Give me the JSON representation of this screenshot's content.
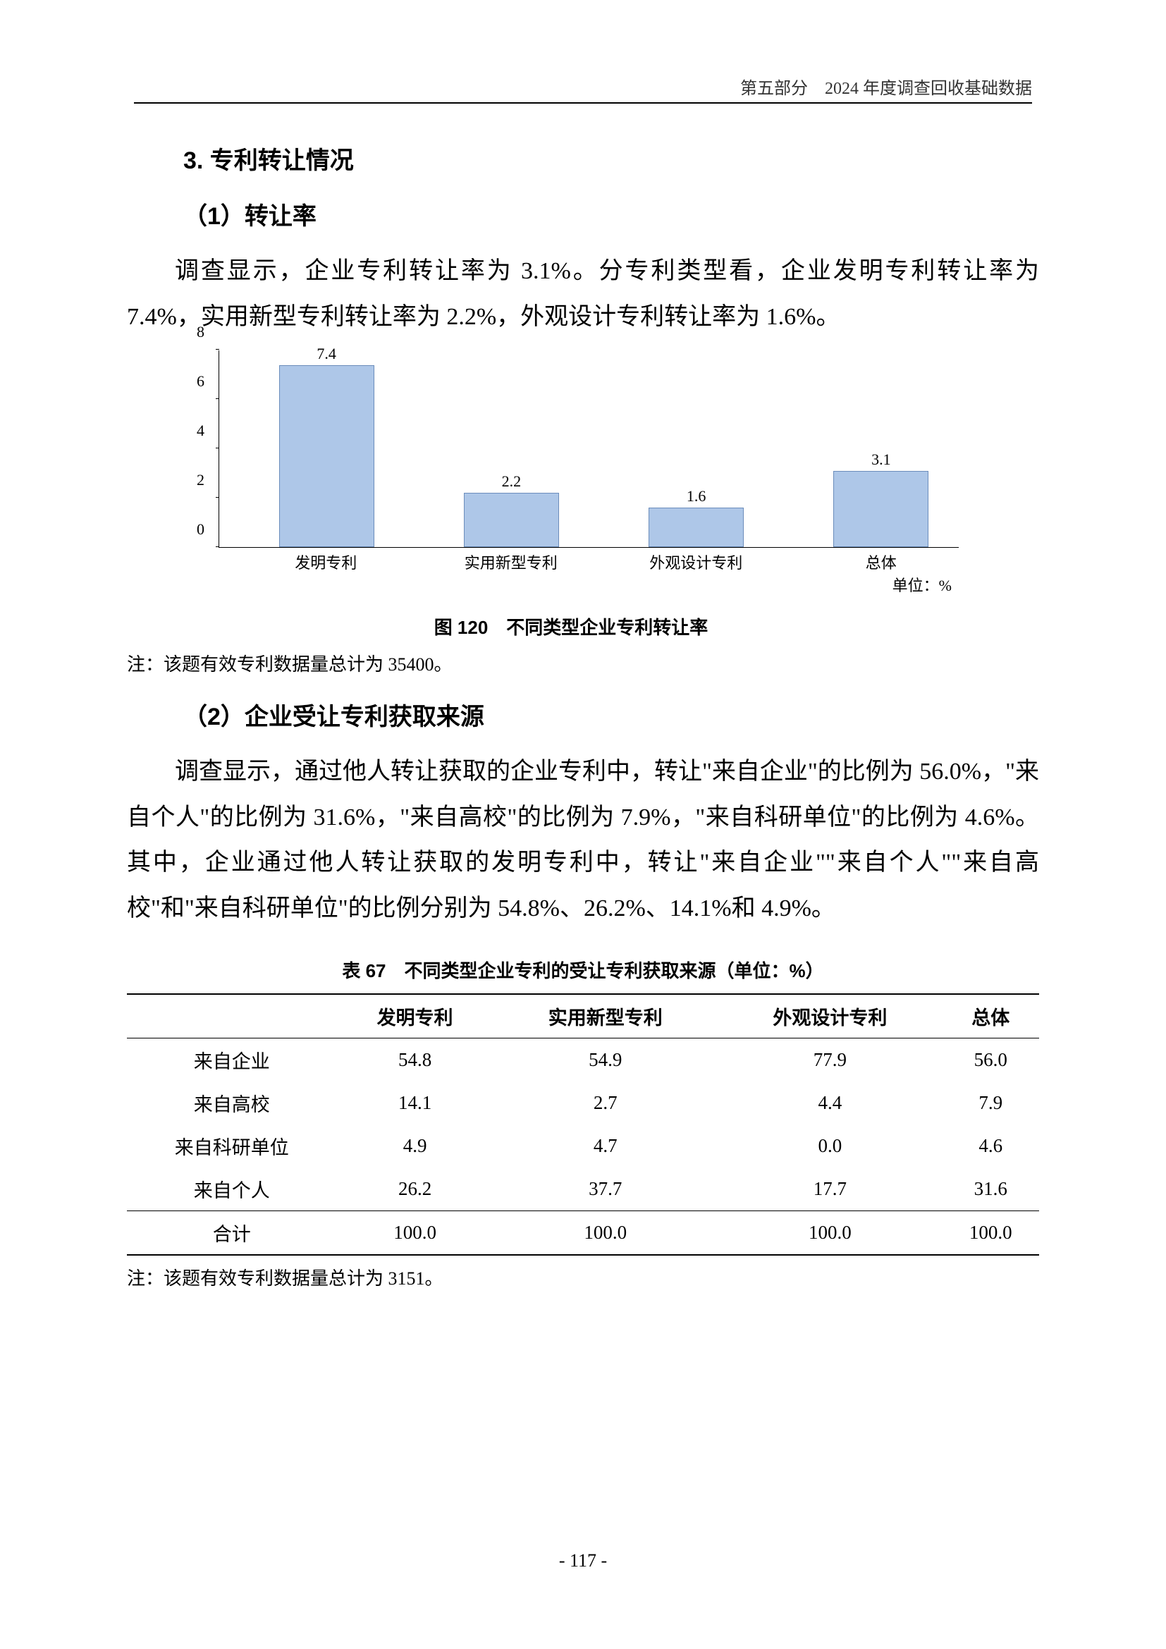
{
  "header": {
    "right": "第五部分　2024 年度调查回收基础数据"
  },
  "section": {
    "num_title": "3. 专利转让情况",
    "sub1": "（1）转让率",
    "para1": "调查显示，企业专利转让率为 3.1%。分专利类型看，企业发明专利转让率为 7.4%，实用新型专利转让率为 2.2%，外观设计专利转让率为 1.6%。",
    "sub2": "（2）企业受让专利获取来源",
    "para2": "调查显示，通过他人转让获取的企业专利中，转让\"来自企业\"的比例为 56.0%，\"来自个人\"的比例为 31.6%，\"来自高校\"的比例为 7.9%，\"来自科研单位\"的比例为 4.6%。其中，企业通过他人转让获取的发明专利中，转让\"来自企业\"\"来自个人\"\"来自高校\"和\"来自科研单位\"的比例分别为 54.8%、26.2%、14.1%和 4.9%。"
  },
  "chart": {
    "type": "bar",
    "categories": [
      "发明专利",
      "实用新型专利",
      "外观设计专利",
      "总体"
    ],
    "values": [
      7.4,
      2.2,
      1.6,
      3.1
    ],
    "value_labels": [
      "7.4",
      "2.2",
      "1.6",
      "3.1"
    ],
    "ylim": [
      0,
      8
    ],
    "yticks": [
      0,
      2,
      4,
      6,
      8
    ],
    "bar_fill": "#aec7e8",
    "bar_border": "#6b8dbb",
    "axis_color": "#000000",
    "label_fontsize": 22,
    "unit": "单位：%",
    "caption": "图 120　不同类型企业专利转让率",
    "note": "注：该题有效专利数据量总计为 35400。"
  },
  "table": {
    "caption": "表 67　不同类型企业专利的受让专利获取来源（单位：%）",
    "columns": [
      "",
      "发明专利",
      "实用新型专利",
      "外观设计专利",
      "总体"
    ],
    "rows": [
      [
        "来自企业",
        "54.8",
        "54.9",
        "77.9",
        "56.0"
      ],
      [
        "来自高校",
        "14.1",
        "2.7",
        "4.4",
        "7.9"
      ],
      [
        "来自科研单位",
        "4.9",
        "4.7",
        "0.0",
        "4.6"
      ],
      [
        "来自个人",
        "26.2",
        "37.7",
        "17.7",
        "31.6"
      ]
    ],
    "sum_row": [
      "合计",
      "100.0",
      "100.0",
      "100.0",
      "100.0"
    ],
    "note": "注：该题有效专利数据量总计为 3151。"
  },
  "page_number": "- 117 -"
}
